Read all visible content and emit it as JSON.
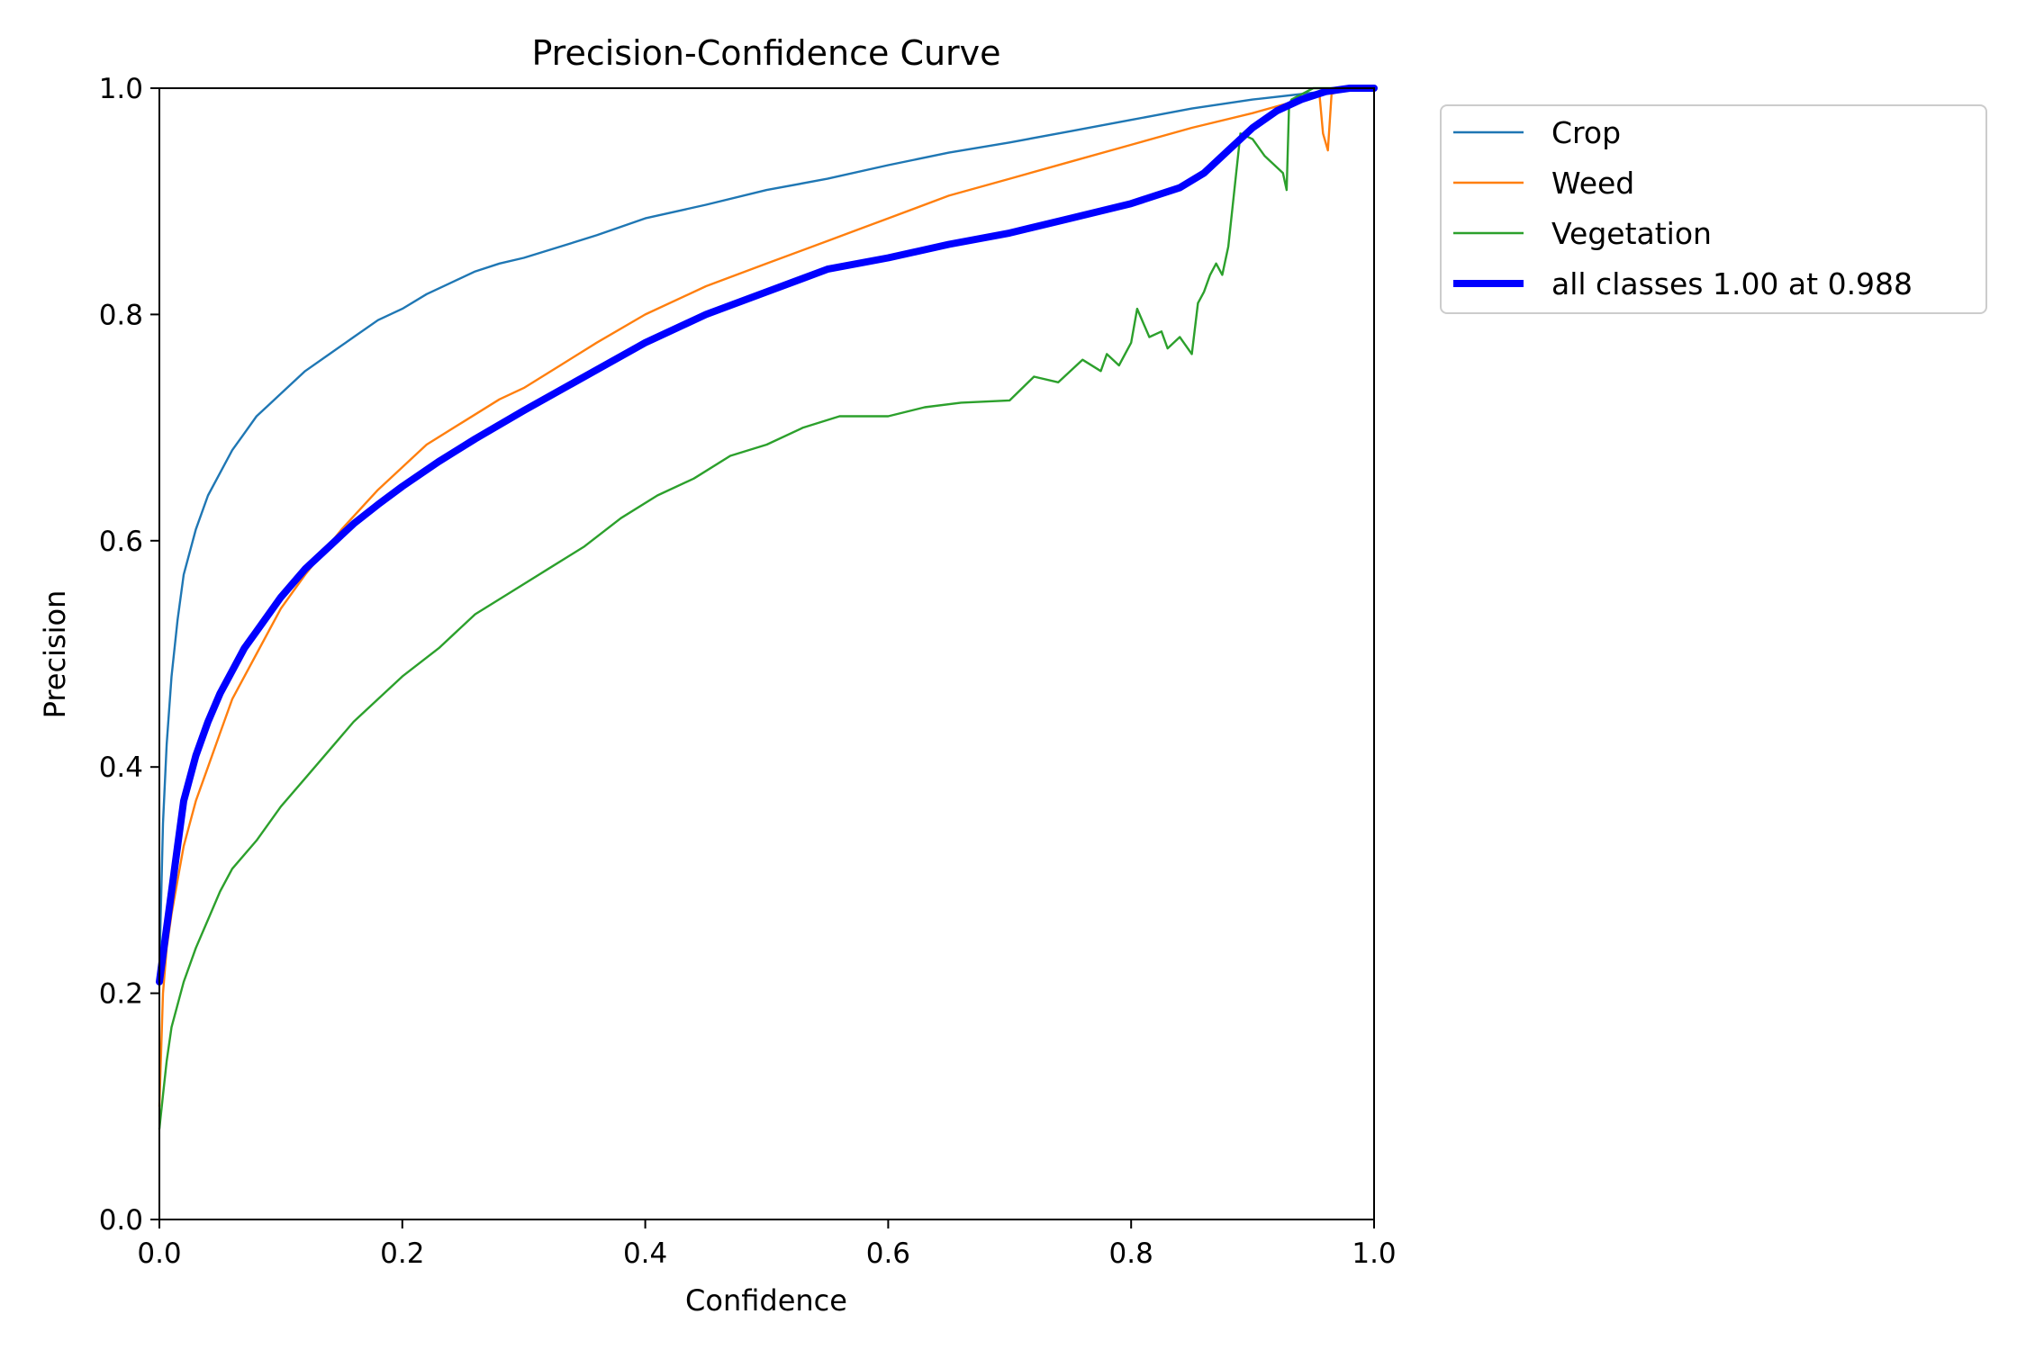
{
  "chart_data": {
    "type": "line",
    "title": "Precision-Confidence Curve",
    "xlabel": "Confidence",
    "ylabel": "Precision",
    "xlim": [
      0,
      1
    ],
    "ylim": [
      0,
      1
    ],
    "xticks": [
      "0.0",
      "0.2",
      "0.4",
      "0.6",
      "0.8",
      "1.0"
    ],
    "yticks": [
      "0.0",
      "0.2",
      "0.4",
      "0.6",
      "0.8",
      "1.0"
    ],
    "grid": false,
    "legend_position": "outside-top-right",
    "series": [
      {
        "name": "Crop",
        "color": "#1f77b4",
        "x": [
          0.0,
          0.003,
          0.006,
          0.01,
          0.015,
          0.02,
          0.03,
          0.04,
          0.05,
          0.06,
          0.07,
          0.08,
          0.09,
          0.1,
          0.12,
          0.14,
          0.16,
          0.18,
          0.2,
          0.22,
          0.24,
          0.26,
          0.28,
          0.3,
          0.33,
          0.36,
          0.4,
          0.45,
          0.5,
          0.55,
          0.6,
          0.65,
          0.7,
          0.75,
          0.8,
          0.85,
          0.9,
          0.95,
          0.97,
          1.0
        ],
        "y": [
          0.22,
          0.35,
          0.42,
          0.48,
          0.53,
          0.57,
          0.61,
          0.64,
          0.66,
          0.68,
          0.695,
          0.71,
          0.72,
          0.73,
          0.75,
          0.765,
          0.78,
          0.795,
          0.805,
          0.818,
          0.828,
          0.838,
          0.845,
          0.85,
          0.86,
          0.87,
          0.885,
          0.897,
          0.91,
          0.92,
          0.932,
          0.943,
          0.952,
          0.962,
          0.972,
          0.982,
          0.99,
          0.996,
          0.999,
          1.0
        ]
      },
      {
        "name": "Weed",
        "color": "#ff7f0e",
        "x": [
          0.0,
          0.003,
          0.006,
          0.01,
          0.015,
          0.02,
          0.03,
          0.04,
          0.05,
          0.06,
          0.08,
          0.1,
          0.12,
          0.15,
          0.18,
          0.2,
          0.22,
          0.25,
          0.28,
          0.3,
          0.33,
          0.36,
          0.4,
          0.45,
          0.5,
          0.55,
          0.6,
          0.65,
          0.7,
          0.75,
          0.8,
          0.85,
          0.9,
          0.94,
          0.955,
          0.958,
          0.962,
          0.965,
          0.98,
          1.0
        ],
        "y": [
          0.1,
          0.2,
          0.24,
          0.27,
          0.3,
          0.33,
          0.37,
          0.4,
          0.43,
          0.46,
          0.5,
          0.54,
          0.57,
          0.61,
          0.645,
          0.665,
          0.685,
          0.705,
          0.725,
          0.735,
          0.755,
          0.775,
          0.8,
          0.825,
          0.845,
          0.865,
          0.885,
          0.905,
          0.92,
          0.935,
          0.95,
          0.965,
          0.978,
          0.99,
          0.995,
          0.96,
          0.945,
          0.995,
          1.0,
          1.0
        ]
      },
      {
        "name": "Vegetation",
        "color": "#2ca02c",
        "x": [
          0.0,
          0.003,
          0.006,
          0.01,
          0.02,
          0.03,
          0.04,
          0.05,
          0.06,
          0.08,
          0.1,
          0.12,
          0.14,
          0.16,
          0.18,
          0.2,
          0.23,
          0.26,
          0.29,
          0.32,
          0.35,
          0.38,
          0.41,
          0.44,
          0.47,
          0.5,
          0.53,
          0.56,
          0.6,
          0.63,
          0.66,
          0.7,
          0.72,
          0.74,
          0.76,
          0.775,
          0.78,
          0.79,
          0.8,
          0.805,
          0.815,
          0.825,
          0.83,
          0.84,
          0.85,
          0.855,
          0.86,
          0.865,
          0.87,
          0.875,
          0.88,
          0.89,
          0.9,
          0.91,
          0.925,
          0.928,
          0.93,
          0.932,
          0.95,
          1.0
        ],
        "y": [
          0.08,
          0.11,
          0.14,
          0.17,
          0.21,
          0.24,
          0.265,
          0.29,
          0.31,
          0.335,
          0.365,
          0.39,
          0.415,
          0.44,
          0.46,
          0.48,
          0.505,
          0.535,
          0.555,
          0.575,
          0.595,
          0.62,
          0.64,
          0.655,
          0.675,
          0.685,
          0.7,
          0.71,
          0.71,
          0.718,
          0.722,
          0.724,
          0.745,
          0.74,
          0.76,
          0.75,
          0.765,
          0.755,
          0.775,
          0.805,
          0.78,
          0.785,
          0.77,
          0.78,
          0.765,
          0.81,
          0.82,
          0.835,
          0.845,
          0.835,
          0.86,
          0.96,
          0.955,
          0.94,
          0.925,
          0.91,
          0.985,
          0.99,
          1.0,
          1.0
        ]
      },
      {
        "name": "all classes 1.00 at 0.988",
        "color": "#0000ff",
        "bold": true,
        "x": [
          0.0,
          0.005,
          0.01,
          0.015,
          0.02,
          0.03,
          0.04,
          0.05,
          0.06,
          0.07,
          0.08,
          0.1,
          0.12,
          0.14,
          0.16,
          0.18,
          0.2,
          0.23,
          0.26,
          0.3,
          0.35,
          0.4,
          0.45,
          0.5,
          0.55,
          0.6,
          0.65,
          0.7,
          0.75,
          0.8,
          0.84,
          0.86,
          0.88,
          0.9,
          0.92,
          0.94,
          0.96,
          0.98,
          1.0
        ],
        "y": [
          0.21,
          0.25,
          0.29,
          0.33,
          0.37,
          0.41,
          0.44,
          0.465,
          0.485,
          0.505,
          0.52,
          0.55,
          0.575,
          0.595,
          0.615,
          0.632,
          0.648,
          0.67,
          0.69,
          0.715,
          0.745,
          0.775,
          0.8,
          0.82,
          0.84,
          0.85,
          0.862,
          0.872,
          0.885,
          0.898,
          0.912,
          0.925,
          0.945,
          0.965,
          0.98,
          0.99,
          0.997,
          1.0,
          1.0
        ]
      }
    ]
  }
}
